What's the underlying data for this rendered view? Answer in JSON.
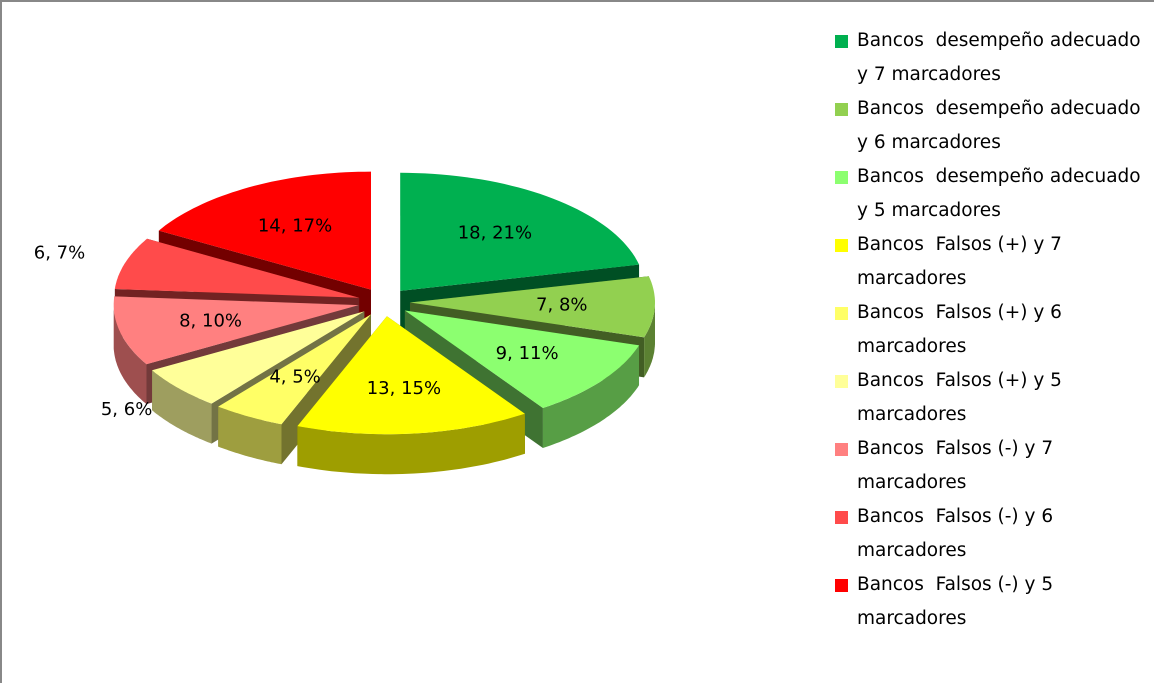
{
  "chart_data": {
    "type": "pie",
    "categories": [
      "Bancos  desempeño adecuado y 7 marcadores",
      "Bancos  desempeño adecuado y 6 marcadores",
      "Bancos  desempeño adecuado y 5 marcadores",
      "Bancos  Falsos (+) y 7 marcadores",
      "Bancos  Falsos (+) y 6 marcadores",
      "Bancos  Falsos (+) y 5 marcadores",
      "Bancos  Falsos (-) y 7 marcadores",
      "Bancos  Falsos (-) y 6 marcadores",
      "Bancos  Falsos (-) y 5 marcadores"
    ],
    "values": [
      18,
      7,
      9,
      13,
      4,
      5,
      8,
      6,
      14
    ],
    "value_labels": [
      "18, 21%",
      "7, 8%",
      "9, 11%",
      "13, 15%",
      "4, 5%",
      "5, 6%",
      "8, 10%",
      "6, 7%",
      "14, 17%"
    ],
    "colors": [
      "#00b050",
      "#92d050",
      "#8cff70",
      "#ffff00",
      "#ffff66",
      "#ffff99",
      "#ff8080",
      "#ff4b4b",
      "#ff0000"
    ],
    "legend": "right"
  }
}
